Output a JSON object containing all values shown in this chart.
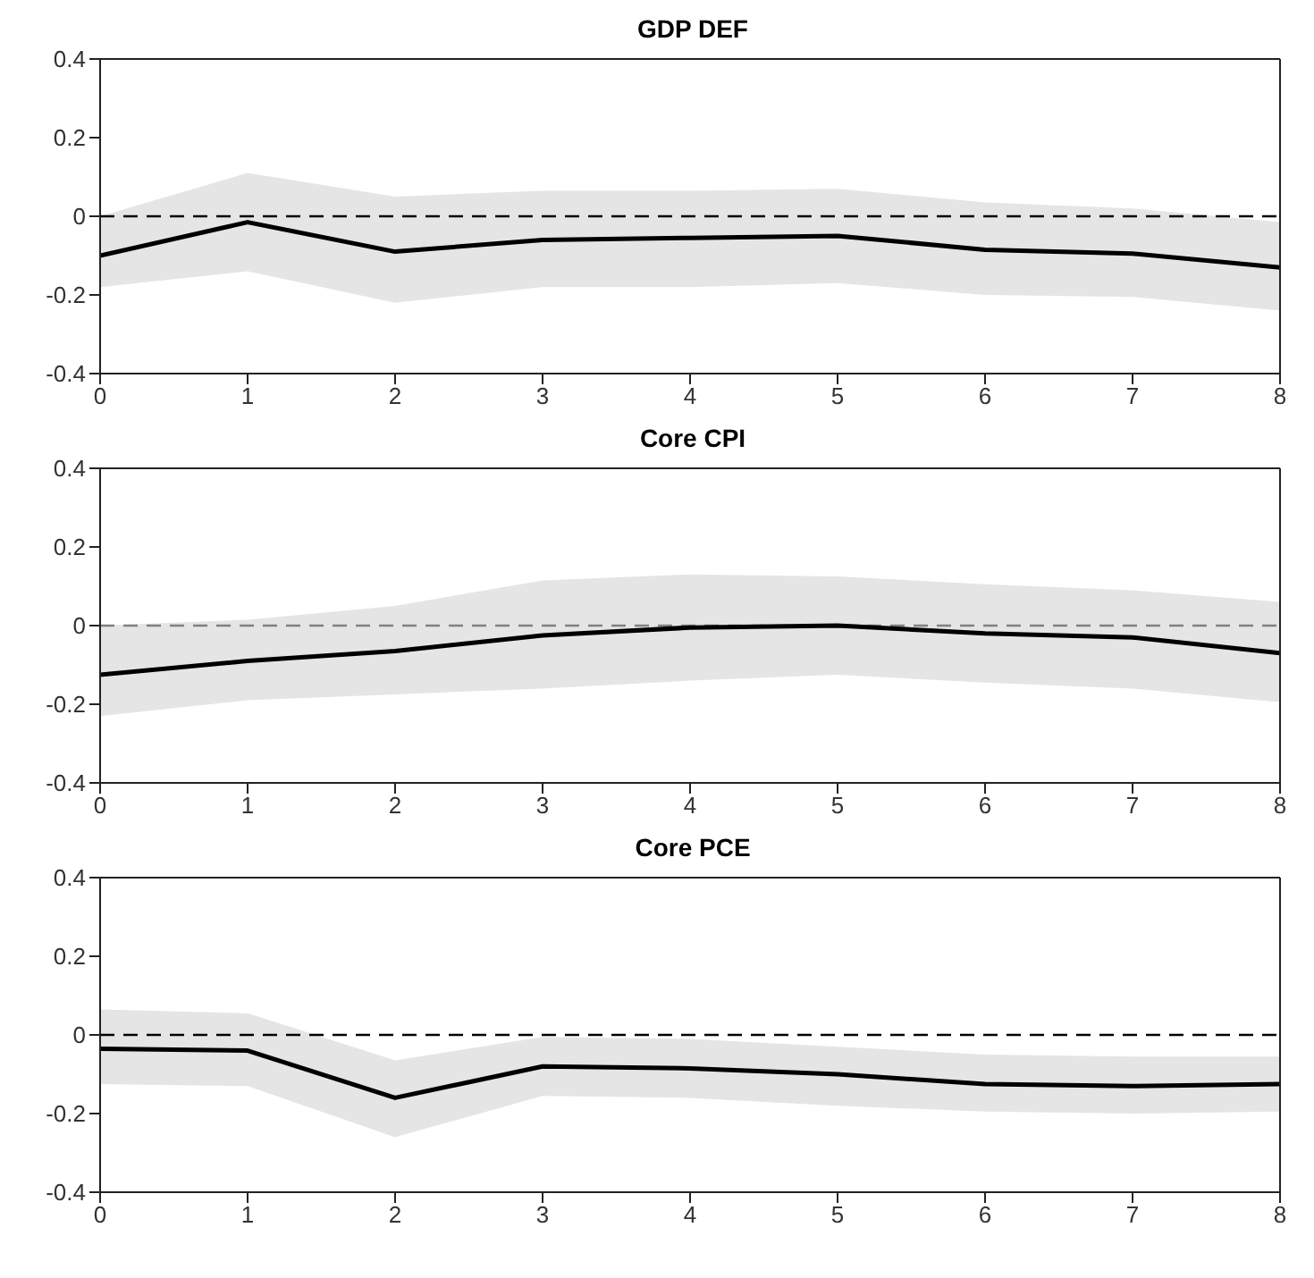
{
  "chart_data": [
    {
      "type": "line",
      "title": "GDP DEF",
      "x": [
        0,
        1,
        2,
        3,
        4,
        5,
        6,
        7,
        8
      ],
      "series": [
        {
          "color": "#000000",
          "values": [
            -0.1,
            -0.015,
            -0.09,
            -0.06,
            -0.055,
            -0.05,
            -0.085,
            -0.095,
            -0.13
          ],
          "lower": [
            -0.18,
            -0.14,
            -0.22,
            -0.18,
            -0.18,
            -0.17,
            -0.2,
            -0.205,
            -0.24
          ],
          "upper": [
            0.0,
            0.11,
            0.05,
            0.065,
            0.065,
            0.07,
            0.035,
            0.02,
            -0.015
          ]
        }
      ],
      "xlim": [
        0,
        8
      ],
      "xticks": [
        0,
        1,
        2,
        3,
        4,
        5,
        6,
        7,
        8
      ],
      "ylim": [
        -0.4,
        0.4
      ],
      "yticks": [
        -0.4,
        -0.2,
        0,
        0.2,
        0.4
      ],
      "grid": false,
      "marker": "none",
      "line_style": "solid",
      "ref_lines": [
        {
          "axis": "y",
          "value": 0,
          "color": "#000000",
          "line_style": "dashed"
        }
      ]
    },
    {
      "type": "line",
      "title": "Core CPI",
      "x": [
        0,
        1,
        2,
        3,
        4,
        5,
        6,
        7,
        8
      ],
      "series": [
        {
          "color": "#000000",
          "values": [
            -0.125,
            -0.09,
            -0.065,
            -0.025,
            -0.005,
            0,
            -0.02,
            -0.03,
            -0.07
          ],
          "lower": [
            -0.23,
            -0.19,
            -0.175,
            -0.16,
            -0.14,
            -0.125,
            -0.145,
            -0.16,
            -0.195
          ],
          "upper": [
            0.0,
            0.015,
            0.05,
            0.115,
            0.13,
            0.125,
            0.105,
            0.09,
            0.06
          ]
        }
      ],
      "xlim": [
        0,
        8
      ],
      "xticks": [
        0,
        1,
        2,
        3,
        4,
        5,
        6,
        7,
        8
      ],
      "ylim": [
        -0.4,
        0.4
      ],
      "yticks": [
        -0.4,
        -0.2,
        0,
        0.2,
        0.4
      ],
      "grid": false,
      "marker": "none",
      "line_style": "solid",
      "ref_lines": [
        {
          "axis": "y",
          "value": 0,
          "color": "#808080",
          "line_style": "dashed"
        }
      ]
    },
    {
      "type": "line",
      "title": "Core PCE",
      "x": [
        0,
        1,
        2,
        3,
        4,
        5,
        6,
        7,
        8
      ],
      "series": [
        {
          "color": "#000000",
          "values": [
            -0.035,
            -0.04,
            -0.16,
            -0.08,
            -0.085,
            -0.1,
            -0.125,
            -0.13,
            -0.125
          ],
          "lower": [
            -0.125,
            -0.13,
            -0.26,
            -0.155,
            -0.16,
            -0.18,
            -0.195,
            -0.2,
            -0.195
          ],
          "upper": [
            0.065,
            0.055,
            -0.065,
            -0.005,
            -0.01,
            -0.03,
            -0.05,
            -0.055,
            -0.055
          ]
        }
      ],
      "xlim": [
        0,
        8
      ],
      "xticks": [
        0,
        1,
        2,
        3,
        4,
        5,
        6,
        7,
        8
      ],
      "ylim": [
        -0.4,
        0.4
      ],
      "yticks": [
        -0.4,
        -0.2,
        0,
        0.2,
        0.4
      ],
      "grid": false,
      "marker": "none",
      "line_style": "solid",
      "ref_lines": [
        {
          "axis": "y",
          "value": 0,
          "color": "#000000",
          "line_style": "dashed"
        }
      ]
    }
  ]
}
